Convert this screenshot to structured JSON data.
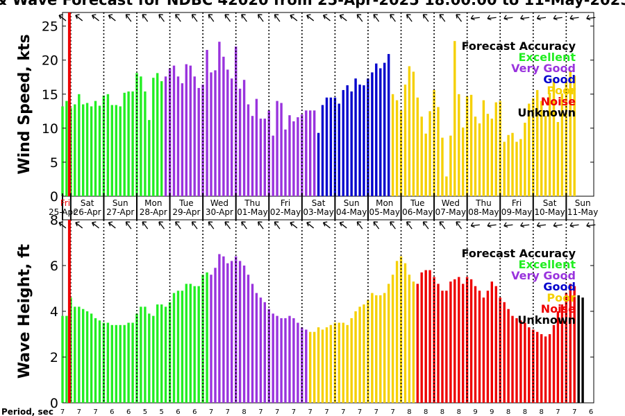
{
  "title": "& Wave Forecast for NDBC 42020 from 25-Apr-2025 18:00:00 to 11-May-2025",
  "period_label": "Period, sec",
  "day_labels": [
    "Fri",
    "Sat",
    "Sun",
    "Mon",
    "Tue",
    "Wed",
    "Thu",
    "Fri",
    "Sat",
    "Sun",
    "Mon",
    "Tue",
    "Wed",
    "Thu",
    "Fri",
    "Sat",
    "Sun"
  ],
  "date_labels": [
    "25-Apr",
    "26-Apr",
    "27-Apr",
    "28-Apr",
    "29-Apr",
    "30-Apr",
    "01-May",
    "02-May",
    "03-May",
    "04-May",
    "05-May",
    "06-May",
    "07-May",
    "08-May",
    "09-May",
    "10-May",
    "11-May"
  ],
  "legend": {
    "title": "Forecast Accuracy",
    "items": [
      {
        "label": "Excellent",
        "color": "#22ee22"
      },
      {
        "label": "Very Good",
        "color": "#9933dd"
      },
      {
        "label": "Good",
        "color": "#0000cc"
      },
      {
        "label": "Poor",
        "color": "#f5d000"
      },
      {
        "label": "Noise",
        "color": "#ee0000"
      },
      {
        "label": "Unknown",
        "color": "#000000"
      }
    ]
  },
  "periods": [
    "7",
    "7",
    "7",
    "6",
    "6",
    "5",
    "5",
    "6",
    "6",
    "7",
    "7",
    "8",
    "7",
    "7",
    "7",
    "7",
    "7",
    "7",
    "7",
    "7",
    "7",
    "8",
    "8",
    "8",
    "8",
    "9",
    "9",
    "8",
    "8",
    "8",
    "7",
    "7",
    "6"
  ],
  "chart_data": [
    {
      "type": "bar",
      "title": "",
      "xlabel": "",
      "ylabel": "Wind Speed, kts",
      "ylim": [
        0,
        27
      ],
      "yticks": [
        0,
        5,
        10,
        15,
        20,
        25
      ],
      "x_start_hours_after_midnight_25_Apr": 18,
      "x_step_hours": 3,
      "values": [
        13.2,
        14.0,
        13.0,
        13.5,
        15.0,
        13.5,
        13.7,
        13.2,
        14.0,
        13.3,
        14.8,
        15.0,
        13.4,
        13.4,
        13.2,
        15.2,
        15.4,
        15.4,
        18.1,
        17.6,
        15.4,
        11.2,
        17.4,
        18.1,
        16.9,
        17.6,
        18.8,
        19.2,
        17.6,
        16.6,
        19.4,
        19.2,
        17.6,
        15.9,
        16.4,
        21.5,
        18.2,
        18.5,
        22.7,
        20.5,
        18.6,
        17.3,
        22.0,
        15.8,
        17.1,
        13.5,
        11.8,
        14.3,
        11.4,
        11.4,
        12.6,
        8.9,
        14.0,
        13.7,
        9.8,
        11.9,
        11.0,
        11.6,
        12.0,
        12.6,
        12.6,
        12.6,
        9.3,
        13.4,
        14.5,
        14.5,
        14.5,
        13.6,
        15.6,
        16.3,
        15.4,
        17.3,
        16.4,
        16.3,
        17.3,
        18.2,
        19.5,
        18.8,
        19.6,
        20.9,
        15.0,
        14.1,
        12.6,
        16.4,
        19.1,
        18.3,
        14.5,
        11.7,
        9.2,
        12.5,
        15.6,
        13.1,
        8.6,
        2.9,
        8.9,
        22.8,
        15.0,
        10.1,
        14.7,
        14.9,
        11.7,
        10.7,
        14.1,
        12.1,
        11.4,
        13.8,
        14.0,
        8.0,
        9.0,
        9.3,
        8.0,
        8.4,
        10.8,
        13.6,
        14.4,
        15.6,
        14.0,
        11.8,
        15.2,
        17.3,
        10.9,
        15.1,
        17.4,
        18.5,
        17.7
      ],
      "color_index": [
        0,
        0,
        0,
        0,
        0,
        0,
        0,
        0,
        0,
        0,
        0,
        0,
        0,
        0,
        0,
        0,
        0,
        0,
        0,
        0,
        0,
        0,
        0,
        0,
        0,
        1,
        1,
        1,
        1,
        1,
        1,
        1,
        1,
        1,
        1,
        1,
        1,
        1,
        1,
        1,
        1,
        1,
        1,
        1,
        1,
        1,
        1,
        1,
        1,
        1,
        1,
        1,
        1,
        1,
        1,
        1,
        1,
        1,
        1,
        1,
        1,
        1,
        2,
        2,
        2,
        2,
        2,
        2,
        2,
        2,
        2,
        2,
        2,
        2,
        2,
        2,
        2,
        2,
        2,
        2,
        3,
        3,
        3,
        3,
        3,
        3,
        3,
        3,
        3,
        3,
        3,
        3,
        3,
        3,
        3,
        3,
        3,
        3,
        3,
        3,
        3,
        3,
        3,
        3,
        3,
        3,
        3,
        3,
        3,
        3,
        3,
        3,
        3,
        3,
        3,
        3,
        3,
        3,
        3,
        3,
        3,
        3,
        3,
        3,
        3
      ]
    },
    {
      "type": "bar",
      "title": "",
      "xlabel": "",
      "ylabel": "Wave Height, ft",
      "ylim": [
        0,
        8
      ],
      "yticks": [
        0,
        2,
        4,
        6,
        8
      ],
      "x_start_hours_after_midnight_25_Apr": 18,
      "x_step_hours": 3,
      "values": [
        3.8,
        3.8,
        4.6,
        4.2,
        4.2,
        4.1,
        4.0,
        3.9,
        3.7,
        3.6,
        3.5,
        3.5,
        3.4,
        3.4,
        3.4,
        3.4,
        3.5,
        3.5,
        3.9,
        4.2,
        4.2,
        3.9,
        3.8,
        4.3,
        4.3,
        4.2,
        4.4,
        4.8,
        4.9,
        4.9,
        5.2,
        5.2,
        5.1,
        5.1,
        5.6,
        5.7,
        5.6,
        5.9,
        6.5,
        6.4,
        6.1,
        6.2,
        6.4,
        6.2,
        6.0,
        5.6,
        5.2,
        4.8,
        4.6,
        4.4,
        4.1,
        3.9,
        3.8,
        3.7,
        3.7,
        3.8,
        3.7,
        3.5,
        3.3,
        3.2,
        3.1,
        3.1,
        3.3,
        3.2,
        3.3,
        3.4,
        3.5,
        3.5,
        3.5,
        3.4,
        3.7,
        4.0,
        4.2,
        4.3,
        4.5,
        4.8,
        4.7,
        4.7,
        4.8,
        5.2,
        5.6,
        6.2,
        6.4,
        6.1,
        5.6,
        5.3,
        5.2,
        5.7,
        5.8,
        5.8,
        5.5,
        5.2,
        4.9,
        4.9,
        5.3,
        5.4,
        5.5,
        5.2,
        5.5,
        5.4,
        5.1,
        4.9,
        4.6,
        4.9,
        5.3,
        5.1,
        4.6,
        4.4,
        4.1,
        3.8,
        3.7,
        3.6,
        3.5,
        3.3,
        3.2,
        3.1,
        3.0,
        2.9,
        3.0,
        3.4,
        4.0,
        4.3,
        4.8,
        5.2,
        5.1,
        4.7,
        4.6
      ],
      "color_index": [
        0,
        0,
        0,
        0,
        0,
        0,
        0,
        0,
        0,
        0,
        0,
        0,
        0,
        0,
        0,
        0,
        0,
        0,
        0,
        0,
        0,
        0,
        0,
        0,
        0,
        0,
        0,
        0,
        0,
        0,
        0,
        0,
        0,
        0,
        0,
        0,
        1,
        1,
        1,
        1,
        1,
        1,
        1,
        1,
        1,
        1,
        1,
        1,
        1,
        1,
        1,
        1,
        1,
        1,
        1,
        1,
        1,
        1,
        1,
        1,
        3,
        3,
        3,
        3,
        3,
        3,
        3,
        3,
        3,
        3,
        3,
        3,
        3,
        3,
        3,
        3,
        3,
        3,
        3,
        3,
        3,
        3,
        3,
        3,
        3,
        3,
        4,
        4,
        4,
        4,
        4,
        4,
        4,
        4,
        4,
        4,
        4,
        4,
        4,
        4,
        4,
        4,
        4,
        4,
        4,
        4,
        4,
        4,
        4,
        4,
        4,
        4,
        4,
        4,
        4,
        4,
        4,
        4,
        4,
        4,
        4,
        4,
        4,
        4,
        4
      ]
    }
  ]
}
